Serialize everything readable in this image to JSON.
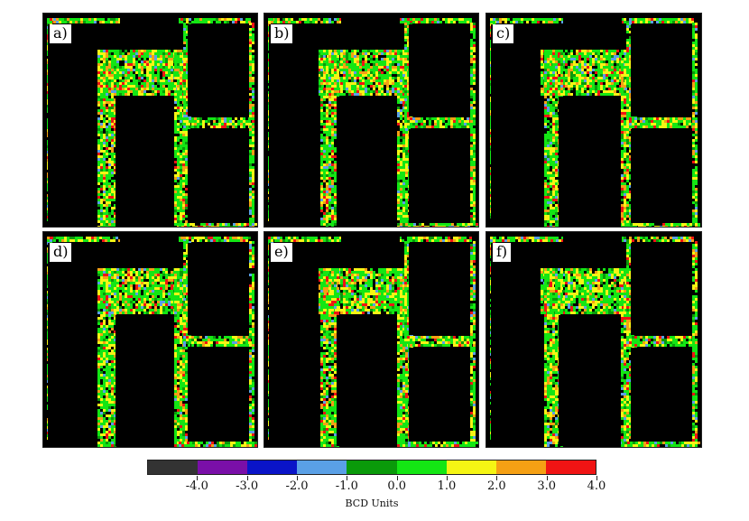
{
  "panels": [
    {
      "label": "a)"
    },
    {
      "label": "b)"
    },
    {
      "label": "c)"
    },
    {
      "label": "d)"
    },
    {
      "label": "e)"
    },
    {
      "label": "f)"
    }
  ],
  "chart_data": {
    "type": "heatmap",
    "description_of_values": "per-cell BCD values on floor-plan corridor regions; interior rooms are no-data (black)",
    "colorbar": {
      "title": "BCD Units",
      "tick_labels": [
        "-4.0",
        "-3.0",
        "-2.0",
        "-1.0",
        "0.0",
        "1.0",
        "2.0",
        "3.0",
        "4.0"
      ],
      "range": [
        -5.0,
        5.0
      ],
      "colors": [
        "#333333",
        "#7a0fa8",
        "#0a14c8",
        "#5aa0e6",
        "#0a9a0a",
        "#14e614",
        "#f5f514",
        "#f5a014",
        "#f01414"
      ]
    },
    "dominant_range": [
      0.0,
      2.0
    ]
  }
}
